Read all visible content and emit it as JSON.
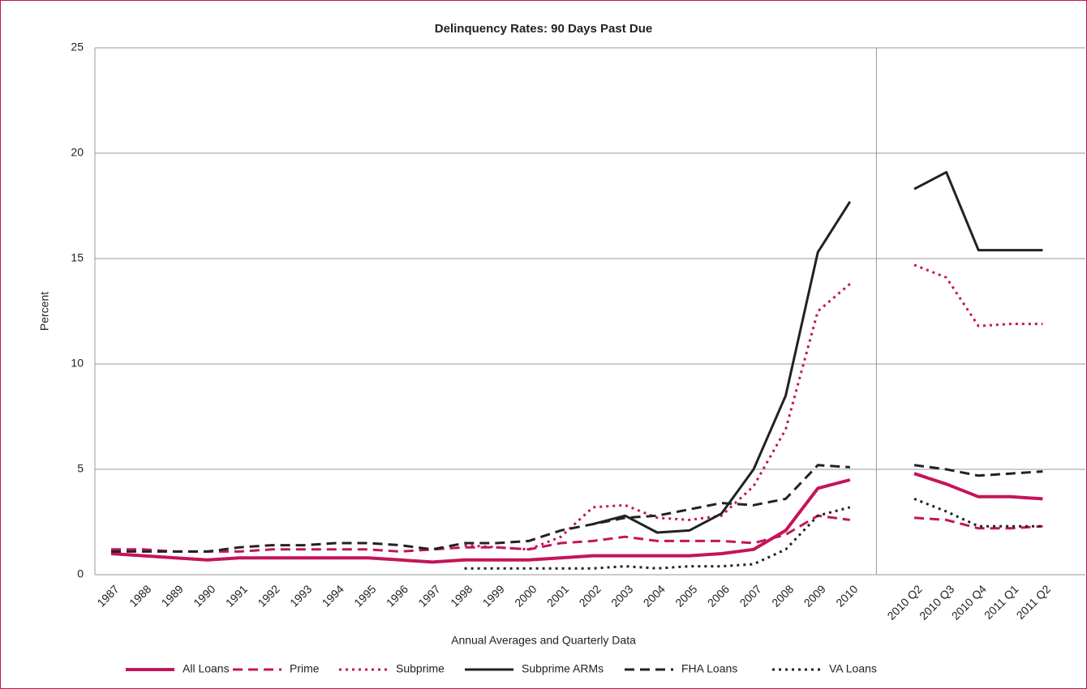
{
  "chart_data": {
    "type": "line",
    "title": "Delinquency Rates: 90 Days Past Due",
    "x_label": "Annual Averages and Quarterly Data",
    "y_label": "Percent",
    "categories": [
      "1987",
      "1988",
      "1989",
      "1990",
      "1991",
      "1992",
      "1993",
      "1994",
      "1995",
      "1996",
      "1997",
      "1998",
      "1999",
      "2000",
      "2001",
      "2002",
      "2003",
      "2004",
      "2005",
      "2006",
      "2007",
      "2008",
      "2009",
      "2010",
      null,
      "2010 Q2",
      "2010 Q3",
      "2010 Q4",
      "2011 Q1",
      "2011 Q2"
    ],
    "ylim": [
      0,
      25
    ],
    "yticks": [
      0,
      5,
      10,
      15,
      20,
      25
    ],
    "grid": true,
    "legend": "bottom",
    "series": [
      {
        "name": "All Loans",
        "color": "#c4145a",
        "dash": "solid",
        "width": 4,
        "values": [
          1.0,
          0.9,
          0.8,
          0.7,
          0.8,
          0.8,
          0.8,
          0.8,
          0.8,
          0.7,
          0.6,
          0.7,
          0.7,
          0.7,
          0.8,
          0.9,
          0.9,
          0.9,
          0.9,
          1.0,
          1.2,
          2.1,
          4.1,
          4.5,
          null,
          4.8,
          4.3,
          3.7,
          3.7,
          3.6
        ]
      },
      {
        "name": "Prime",
        "color": "#c4145a",
        "dash": "dashed",
        "width": 3,
        "values": [
          1.2,
          1.2,
          1.1,
          1.1,
          1.1,
          1.2,
          1.2,
          1.2,
          1.2,
          1.1,
          1.2,
          1.3,
          1.3,
          1.2,
          1.5,
          1.6,
          1.8,
          1.6,
          1.6,
          1.6,
          1.5,
          1.9,
          2.8,
          2.6,
          null,
          2.7,
          2.6,
          2.2,
          2.2,
          2.3
        ]
      },
      {
        "name": "Subprime",
        "color": "#c4145a",
        "dash": "dotted",
        "width": 3,
        "values": [
          null,
          null,
          null,
          null,
          null,
          null,
          null,
          null,
          null,
          null,
          null,
          1.4,
          1.3,
          1.2,
          1.8,
          3.2,
          3.3,
          2.7,
          2.6,
          2.8,
          4.2,
          6.9,
          12.5,
          13.8,
          null,
          14.7,
          14.1,
          11.8,
          11.9,
          11.9
        ]
      },
      {
        "name": "Subprime ARMs",
        "color": "#222222",
        "dash": "solid",
        "width": 3,
        "values": [
          null,
          null,
          null,
          null,
          null,
          null,
          null,
          null,
          null,
          null,
          null,
          null,
          null,
          null,
          null,
          2.4,
          2.8,
          2.0,
          2.1,
          2.9,
          5.0,
          8.5,
          15.3,
          17.7,
          null,
          18.3,
          19.1,
          15.4,
          15.4,
          15.4
        ]
      },
      {
        "name": "FHA Loans",
        "color": "#222222",
        "dash": "dashed",
        "width": 3,
        "values": [
          1.1,
          1.1,
          1.1,
          1.1,
          1.3,
          1.4,
          1.4,
          1.5,
          1.5,
          1.4,
          1.2,
          1.5,
          1.5,
          1.6,
          2.1,
          2.4,
          2.7,
          2.8,
          3.1,
          3.4,
          3.3,
          3.6,
          5.2,
          5.1,
          null,
          5.2,
          5.0,
          4.7,
          4.8,
          4.9
        ]
      },
      {
        "name": "VA Loans",
        "color": "#222222",
        "dash": "dotted",
        "width": 3,
        "values": [
          null,
          null,
          null,
          null,
          null,
          null,
          null,
          null,
          null,
          null,
          null,
          0.3,
          0.3,
          0.3,
          0.3,
          0.3,
          0.4,
          0.3,
          0.4,
          0.4,
          0.5,
          1.2,
          2.8,
          3.2,
          null,
          3.6,
          3.0,
          2.3,
          2.3,
          2.3
        ]
      }
    ]
  }
}
